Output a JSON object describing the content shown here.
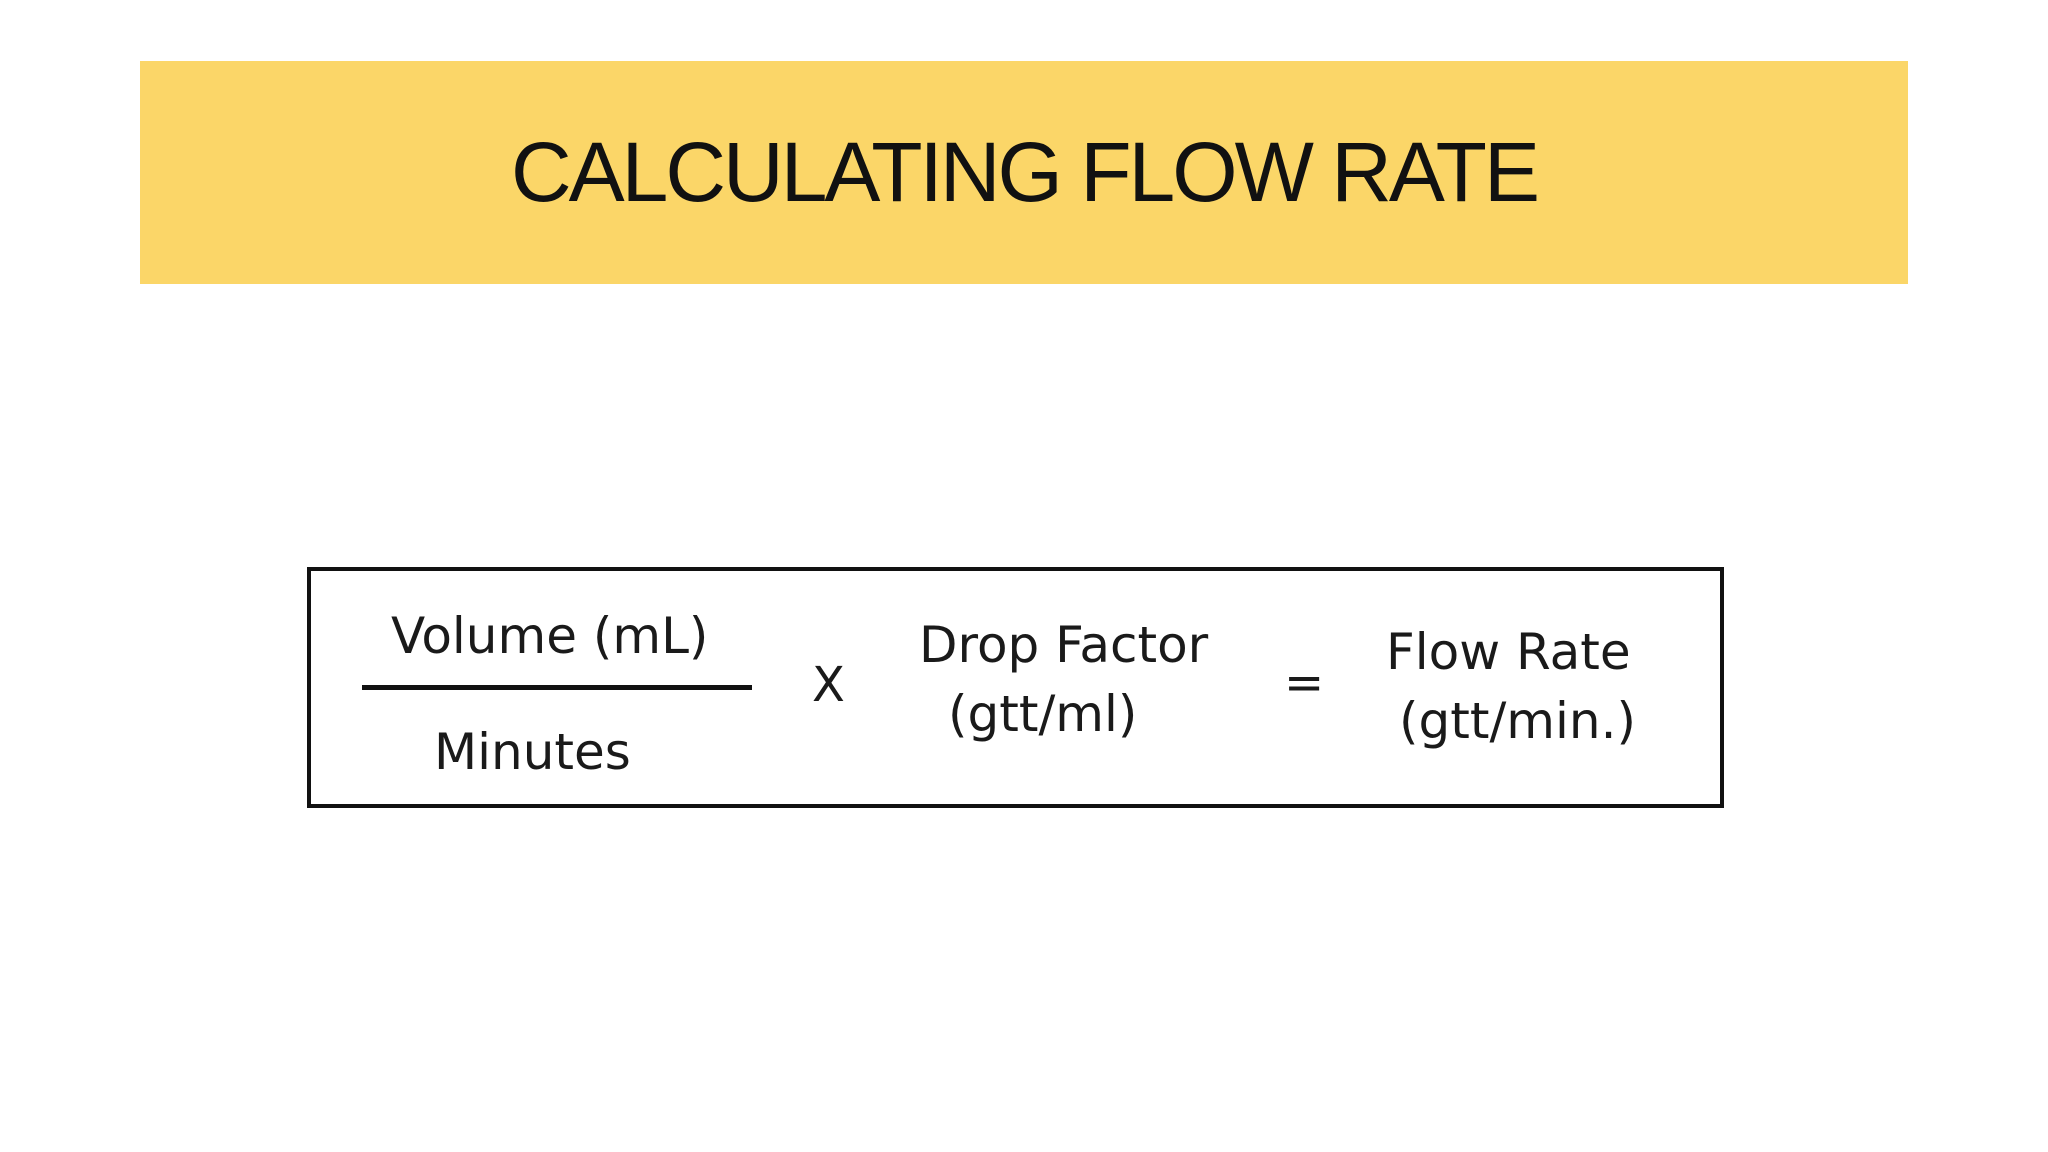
{
  "slide": {
    "title": "CALCULATING FLOW RATE",
    "banner_color": "#fbd668"
  },
  "formula": {
    "numerator": "Volume (mL)",
    "denominator": "Minutes",
    "multiply_symbol": "X",
    "drop_factor_line1": "Drop Factor",
    "drop_factor_line2": "(gtt/ml)",
    "equals_symbol": "=",
    "flow_rate_line1": "Flow Rate",
    "flow_rate_line2": "(gtt/min.)"
  }
}
